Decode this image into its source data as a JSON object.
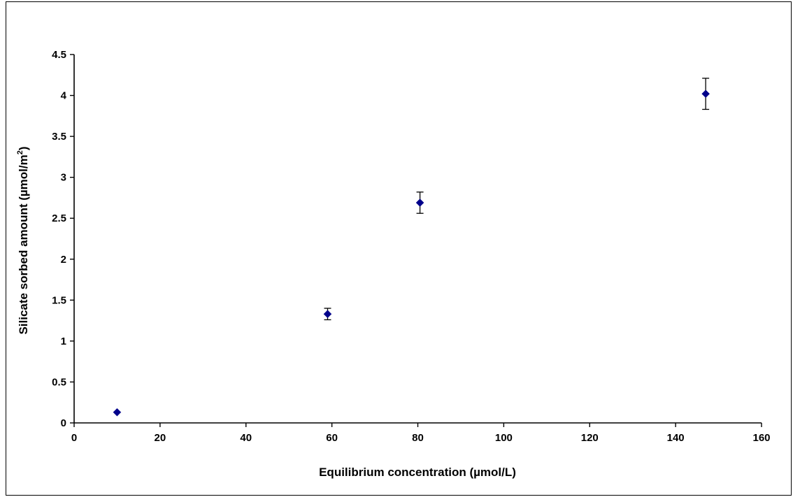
{
  "chart_data": {
    "type": "scatter",
    "title": "",
    "xlabel": "Equilibrium concentration (µmol/L)",
    "ylabel_main": "Silicate sorbed amount (µmol/m",
    "ylabel_sup": "2",
    "ylabel_close": ")",
    "xlim": [
      0,
      160
    ],
    "ylim": [
      0,
      4.5
    ],
    "xticks": [
      0,
      20,
      40,
      60,
      80,
      100,
      120,
      140,
      160
    ],
    "yticks": [
      0,
      0.5,
      1,
      1.5,
      2,
      2.5,
      3,
      3.5,
      4,
      4.5
    ],
    "xtick_labels": [
      "0",
      "20",
      "40",
      "60",
      "80",
      "100",
      "120",
      "140",
      "160"
    ],
    "ytick_labels": [
      "0",
      "0.5",
      "1",
      "1.5",
      "2",
      "2.5",
      "3",
      "3.5",
      "4",
      "4.5"
    ],
    "grid": false,
    "legend": "none",
    "marker_color": "#00008B",
    "points": [
      {
        "x": 10,
        "y": 0.13,
        "yerr": 0
      },
      {
        "x": 59,
        "y": 1.33,
        "yerr": 0.07
      },
      {
        "x": 80.5,
        "y": 2.69,
        "yerr": 0.13
      },
      {
        "x": 147,
        "y": 4.02,
        "yerr": 0.19
      }
    ]
  }
}
